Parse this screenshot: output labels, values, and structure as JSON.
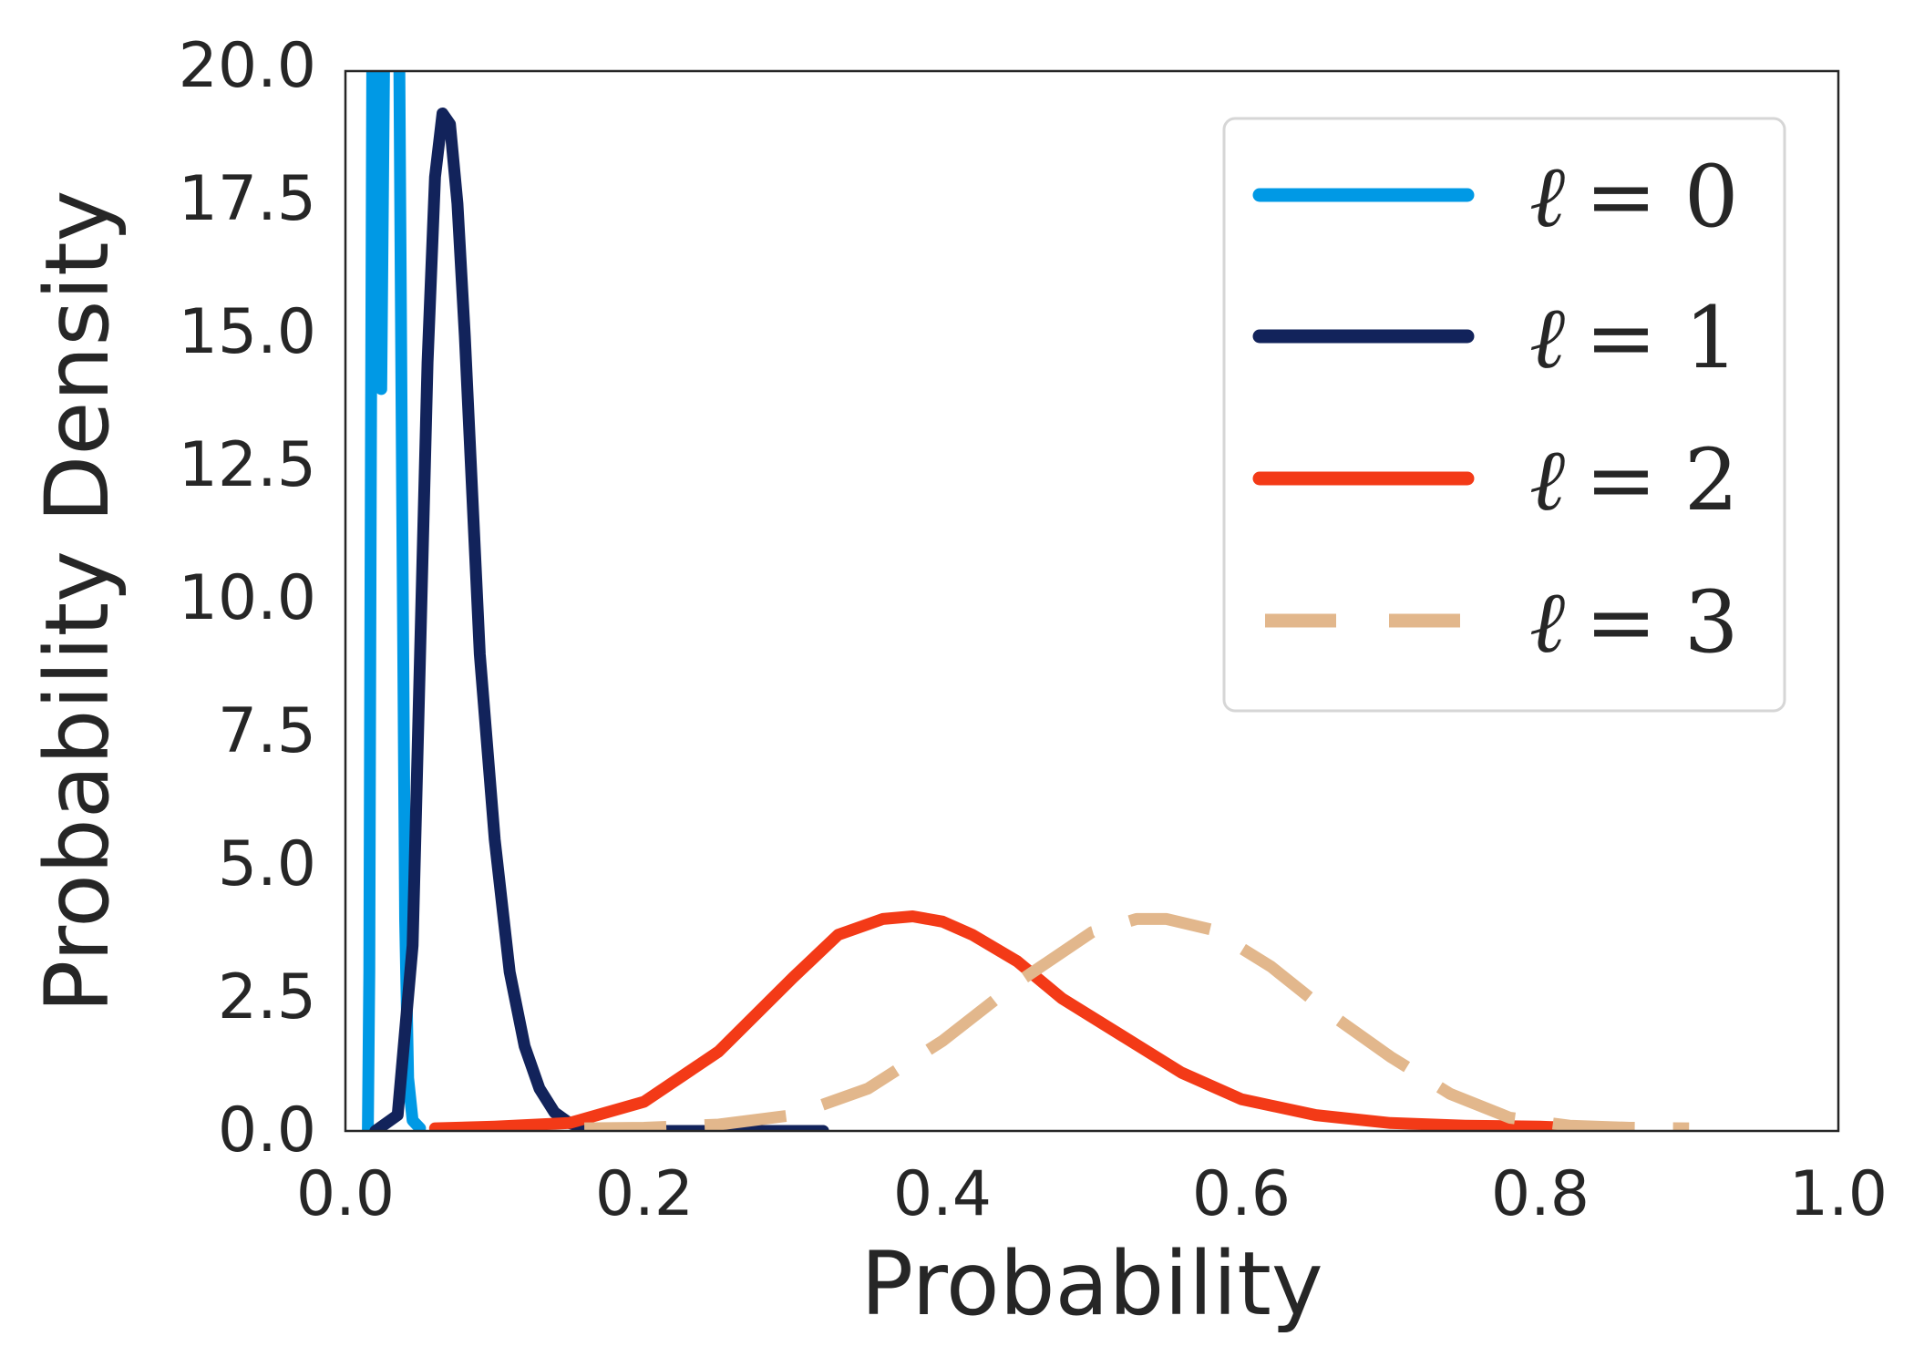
{
  "chart_data": {
    "type": "line",
    "title": "",
    "xlabel": "Probability",
    "ylabel": "Probability Density",
    "xlim": [
      0.0,
      1.0
    ],
    "ylim": [
      0.0,
      20.0
    ],
    "xticks": [
      "0.0",
      "0.2",
      "0.4",
      "0.6",
      "0.8",
      "1.0"
    ],
    "yticks": [
      "0.0",
      "2.5",
      "5.0",
      "7.5",
      "10.0",
      "12.5",
      "15.0",
      "17.5",
      "20.0"
    ],
    "grid": false,
    "legend_position": "top-right",
    "series": [
      {
        "name": "ℓ = 0",
        "symbol": "ℓ",
        "value_label": "= 0",
        "color": "#0099E5",
        "dash": "solid",
        "x": [
          0.015,
          0.016,
          0.017,
          0.018,
          0.02,
          0.022,
          0.024,
          0.026,
          0.028,
          0.03,
          0.032,
          0.034,
          0.036,
          0.038,
          0.04,
          0.042,
          0.045,
          0.05
        ],
        "y": [
          0.0,
          3.0,
          12.0,
          20.5,
          20.5,
          20.5,
          14.0,
          20.5,
          20.5,
          20.5,
          20.5,
          20.5,
          20.5,
          12.0,
          4.0,
          1.0,
          0.2,
          0.05
        ]
      },
      {
        "name": "ℓ = 1",
        "symbol": "ℓ",
        "value_label": "= 1",
        "color": "#12235B",
        "dash": "solid",
        "x": [
          0.02,
          0.035,
          0.045,
          0.05,
          0.055,
          0.06,
          0.065,
          0.07,
          0.075,
          0.08,
          0.085,
          0.09,
          0.1,
          0.11,
          0.12,
          0.13,
          0.14,
          0.15,
          0.16,
          0.175,
          0.2,
          0.25,
          0.3,
          0.32
        ],
        "y": [
          0.0,
          0.3,
          3.5,
          9.0,
          14.5,
          18.0,
          19.2,
          19.0,
          17.5,
          15.0,
          12.0,
          9.0,
          5.5,
          3.0,
          1.6,
          0.8,
          0.35,
          0.15,
          0.06,
          0.02,
          0.0,
          0.0,
          0.0,
          0.0
        ]
      },
      {
        "name": "ℓ = 2",
        "symbol": "ℓ",
        "value_label": "= 2",
        "color": "#F33A17",
        "dash": "solid",
        "x": [
          0.06,
          0.1,
          0.15,
          0.2,
          0.25,
          0.3,
          0.33,
          0.36,
          0.38,
          0.4,
          0.42,
          0.45,
          0.48,
          0.52,
          0.56,
          0.6,
          0.65,
          0.7,
          0.75,
          0.8,
          0.82
        ],
        "y": [
          0.05,
          0.08,
          0.15,
          0.55,
          1.5,
          2.9,
          3.7,
          4.0,
          4.05,
          3.95,
          3.7,
          3.2,
          2.5,
          1.8,
          1.1,
          0.6,
          0.3,
          0.15,
          0.1,
          0.08,
          0.06
        ]
      },
      {
        "name": "ℓ = 3",
        "symbol": "ℓ",
        "value_label": "= 3",
        "color": "#E2B78C",
        "dash": "dashed",
        "x": [
          0.16,
          0.2,
          0.25,
          0.3,
          0.35,
          0.4,
          0.45,
          0.5,
          0.53,
          0.55,
          0.58,
          0.62,
          0.66,
          0.7,
          0.74,
          0.78,
          0.82,
          0.86,
          0.9
        ],
        "y": [
          0.05,
          0.06,
          0.12,
          0.3,
          0.8,
          1.7,
          2.8,
          3.75,
          4.0,
          4.0,
          3.8,
          3.1,
          2.2,
          1.4,
          0.7,
          0.25,
          0.1,
          0.06,
          0.05
        ]
      }
    ]
  }
}
